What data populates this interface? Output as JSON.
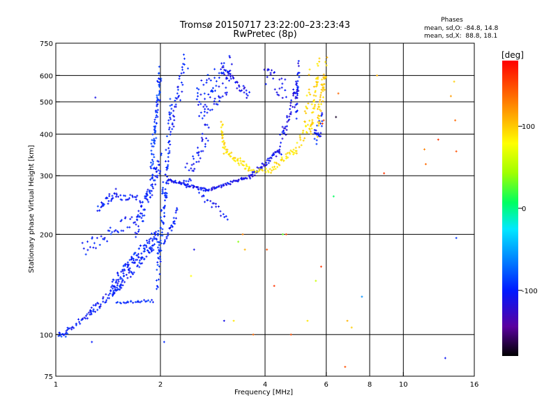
{
  "chart_data": {
    "type": "scatter",
    "title": "Tromsø 20150717 23:22:00–23:23:43",
    "subtitle": "RwPretec (8p)",
    "xlabel": "Frequency [MHz]",
    "ylabel": "Stationary phase Virtual Height [km]",
    "x_scale": "log",
    "y_scale": "log",
    "xlim": [
      1,
      16
    ],
    "ylim": [
      75,
      750
    ],
    "x_ticks": [
      1,
      2,
      4,
      6,
      8,
      10,
      16
    ],
    "x_tick_labels": [
      "1",
      "2",
      "4",
      "6",
      "8",
      "10",
      "16"
    ],
    "y_ticks": [
      75,
      100,
      200,
      300,
      400,
      500,
      600,
      750
    ],
    "y_tick_labels": [
      "75",
      "100",
      "200",
      "300",
      "400",
      "500",
      "600",
      "750"
    ],
    "x_grid": [
      2,
      4,
      6,
      8,
      10
    ],
    "y_grid": [
      100,
      200,
      300,
      400,
      500,
      600
    ],
    "phase_info": {
      "heading": "Phases",
      "line_o": "mean, sd,O: -84.8, 14.8",
      "line_x": "mean, sd,X:  88.8, 18.1"
    },
    "colorbar": {
      "label": "[deg]",
      "range": [
        -180,
        180
      ],
      "ticks": [
        100,
        0,
        -100
      ],
      "tick_labels": [
        "100",
        "0",
        "-100"
      ]
    },
    "point_groups": [
      {
        "f": [
          1.0,
          1.08
        ],
        "h": [
          100,
          100
        ],
        "phase": -95,
        "n": 14,
        "jitter": 3
      },
      {
        "f": [
          1.06,
          1.28
        ],
        "h": [
          101,
          117
        ],
        "phase": -100,
        "n": 30,
        "jitter": 4
      },
      {
        "f": [
          1.25,
          1.55
        ],
        "h": [
          116,
          142
        ],
        "phase": -105,
        "n": 45,
        "jitter": 6
      },
      {
        "f": [
          1.5,
          1.9
        ],
        "h": [
          125,
          126
        ],
        "phase": -95,
        "n": 25,
        "jitter": 2
      },
      {
        "f": [
          1.45,
          1.95
        ],
        "h": [
          138,
          195
        ],
        "phase": -98,
        "n": 150,
        "jitter": 14
      },
      {
        "f": [
          1.2,
          1.7
        ],
        "h": [
          180,
          225
        ],
        "phase": -100,
        "n": 40,
        "jitter": 10
      },
      {
        "f": [
          1.32,
          1.5
        ],
        "h": [
          240,
          268
        ],
        "phase": -100,
        "n": 30,
        "jitter": 6
      },
      {
        "f": [
          1.5,
          1.75
        ],
        "h": [
          260,
          255
        ],
        "phase": -100,
        "n": 20,
        "jitter": 5
      },
      {
        "f": [
          1.7,
          2.0
        ],
        "h": [
          205,
          330
        ],
        "phase": -98,
        "n": 80,
        "jitter": 15
      },
      {
        "f": [
          1.88,
          2.0
        ],
        "h": [
          320,
          600
        ],
        "phase": -92,
        "n": 75,
        "jitter": 25
      },
      {
        "f": [
          1.95,
          2.15
        ],
        "h": [
          145,
          460
        ],
        "phase": -95,
        "n": 110,
        "jitter": 35
      },
      {
        "f": [
          2.05,
          2.25
        ],
        "h": [
          190,
          235
        ],
        "phase": -100,
        "n": 25,
        "jitter": 8
      },
      {
        "f": [
          2.1,
          2.7
        ],
        "h": [
          292,
          272
        ],
        "phase": -105,
        "n": 55,
        "jitter": 2
      },
      {
        "f": [
          2.7,
          3.6
        ],
        "h": [
          270,
          298
        ],
        "phase": -108,
        "n": 55,
        "jitter": 2
      },
      {
        "f": [
          2.15,
          2.35
        ],
        "h": [
          420,
          640
        ],
        "phase": -100,
        "n": 35,
        "jitter": 20
      },
      {
        "f": [
          2.35,
          2.75
        ],
        "h": [
          305,
          400
        ],
        "phase": -102,
        "n": 40,
        "jitter": 25
      },
      {
        "f": [
          2.55,
          3.2
        ],
        "h": [
          490,
          620
        ],
        "phase": -100,
        "n": 80,
        "jitter": 30
      },
      {
        "f": [
          2.6,
          3.1
        ],
        "h": [
          265,
          225
        ],
        "phase": -105,
        "n": 20,
        "jitter": 5
      },
      {
        "f": [
          3.0,
          3.6
        ],
        "h": [
          630,
          520
        ],
        "phase": -110,
        "n": 35,
        "jitter": 6
      },
      {
        "f": [
          3.6,
          4.4
        ],
        "h": [
          298,
          355
        ],
        "phase": -110,
        "n": 50,
        "jitter": 4
      },
      {
        "f": [
          4.4,
          4.95
        ],
        "h": [
          360,
          560
        ],
        "phase": -110,
        "n": 45,
        "jitter": 15
      },
      {
        "f": [
          4.0,
          4.6
        ],
        "h": [
          600,
          540
        ],
        "phase": -110,
        "n": 25,
        "jitter": 15
      },
      {
        "f": [
          4.9,
          5.0
        ],
        "h": [
          450,
          640
        ],
        "phase": -105,
        "n": 30,
        "jitter": 15
      },
      {
        "f": [
          5.55,
          5.85
        ],
        "h": [
          380,
          440
        ],
        "phase": -100,
        "n": 25,
        "jitter": 15
      },
      {
        "f": [
          3.0,
          3.05
        ],
        "h": [
          420,
          360
        ],
        "phase": 95,
        "n": 20,
        "jitter": 8
      },
      {
        "f": [
          3.05,
          3.6
        ],
        "h": [
          360,
          315
        ],
        "phase": 92,
        "n": 40,
        "jitter": 5
      },
      {
        "f": [
          3.6,
          4.2
        ],
        "h": [
          312,
          310
        ],
        "phase": 92,
        "n": 20,
        "jitter": 3
      },
      {
        "f": [
          4.2,
          4.9
        ],
        "h": [
          315,
          360
        ],
        "phase": 92,
        "n": 30,
        "jitter": 5
      },
      {
        "f": [
          4.9,
          5.4
        ],
        "h": [
          360,
          430
        ],
        "phase": 95,
        "n": 20,
        "jitter": 10
      },
      {
        "f": [
          5.4,
          5.7
        ],
        "h": [
          400,
          640
        ],
        "phase": 95,
        "n": 40,
        "jitter": 15
      },
      {
        "f": [
          5.65,
          6.0
        ],
        "h": [
          420,
          640
        ],
        "phase": 100,
        "n": 45,
        "jitter": 20
      },
      {
        "f": [
          5.2,
          5.4
        ],
        "h": [
          420,
          600
        ],
        "phase": 95,
        "n": 15,
        "jitter": 15
      }
    ],
    "isolated_points": [
      {
        "f": 1.3,
        "h": 515,
        "phase": -110
      },
      {
        "f": 1.27,
        "h": 95,
        "phase": -100
      },
      {
        "f": 2.05,
        "h": 95,
        "phase": -95
      },
      {
        "f": 2.4,
        "h": 630,
        "phase": -90
      },
      {
        "f": 2.5,
        "h": 180,
        "phase": -110
      },
      {
        "f": 2.45,
        "h": 150,
        "phase": 80
      },
      {
        "f": 3.05,
        "h": 110,
        "phase": -110
      },
      {
        "f": 3.25,
        "h": 110,
        "phase": 90
      },
      {
        "f": 3.45,
        "h": 200,
        "phase": 130
      },
      {
        "f": 3.35,
        "h": 190,
        "phase": 40
      },
      {
        "f": 3.5,
        "h": 180,
        "phase": 110
      },
      {
        "f": 3.7,
        "h": 100,
        "phase": 140
      },
      {
        "f": 4.05,
        "h": 180,
        "phase": 150
      },
      {
        "f": 4.25,
        "h": 140,
        "phase": 160
      },
      {
        "f": 4.5,
        "h": 200,
        "phase": 30
      },
      {
        "f": 4.6,
        "h": 200,
        "phase": 150
      },
      {
        "f": 4.75,
        "h": 100,
        "phase": 150
      },
      {
        "f": 5.3,
        "h": 110,
        "phase": 90
      },
      {
        "f": 5.6,
        "h": 145,
        "phase": 60
      },
      {
        "f": 5.8,
        "h": 160,
        "phase": 160
      },
      {
        "f": 6.3,
        "h": 260,
        "phase": 10
      },
      {
        "f": 6.4,
        "h": 450,
        "phase": -170
      },
      {
        "f": 6.5,
        "h": 530,
        "phase": 140
      },
      {
        "f": 6.9,
        "h": 110,
        "phase": 110
      },
      {
        "f": 7.1,
        "h": 105,
        "phase": 100
      },
      {
        "f": 7.6,
        "h": 130,
        "phase": -60
      },
      {
        "f": 8.8,
        "h": 305,
        "phase": 160
      },
      {
        "f": 8.4,
        "h": 600,
        "phase": 110
      },
      {
        "f": 6.8,
        "h": 80,
        "phase": 150
      },
      {
        "f": 5.85,
        "h": 430,
        "phase": 160
      },
      {
        "f": 5.9,
        "h": 440,
        "phase": 150
      },
      {
        "f": 11.5,
        "h": 360,
        "phase": 130
      },
      {
        "f": 11.6,
        "h": 325,
        "phase": 140
      },
      {
        "f": 14.2,
        "h": 355,
        "phase": 150
      },
      {
        "f": 14.1,
        "h": 440,
        "phase": 140
      },
      {
        "f": 14.0,
        "h": 575,
        "phase": 100
      },
      {
        "f": 13.2,
        "h": 85,
        "phase": -105
      },
      {
        "f": 14.2,
        "h": 195,
        "phase": -90
      },
      {
        "f": 13.7,
        "h": 520,
        "phase": 120
      },
      {
        "f": 12.6,
        "h": 385,
        "phase": 160
      }
    ]
  }
}
